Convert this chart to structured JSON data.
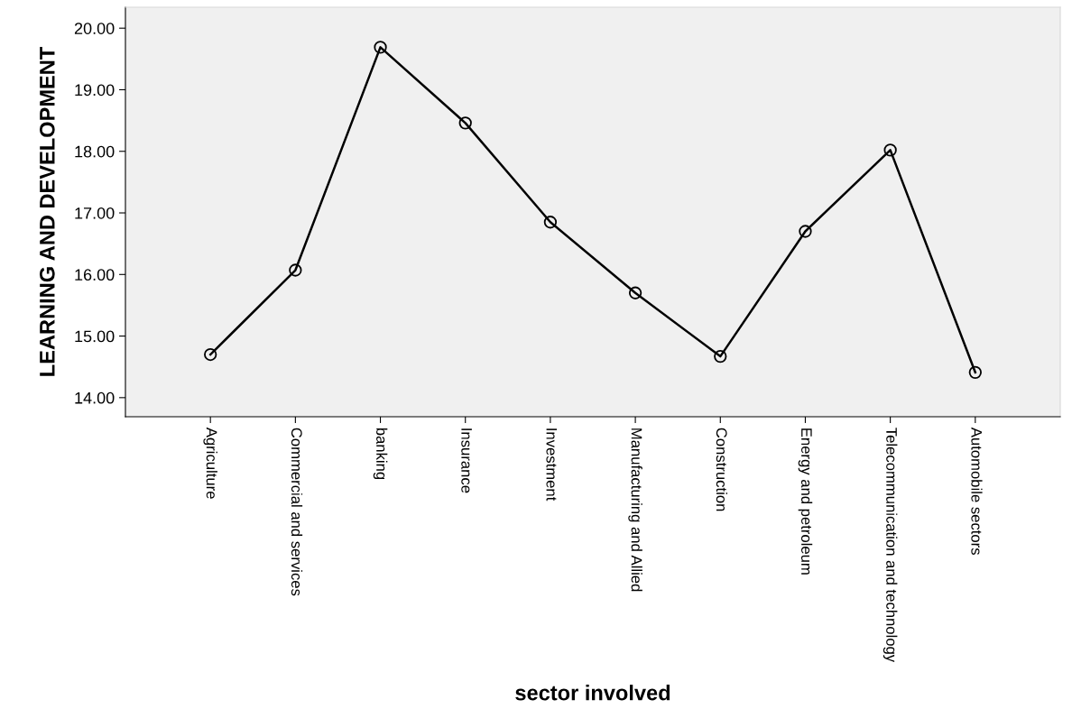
{
  "chart_data": {
    "type": "line",
    "xlabel": "sector involved",
    "ylabel": "LEARNING AND DEVELOPMENT",
    "categories": [
      "Agriculture",
      "Commercial and services",
      "banking",
      "Insurance",
      "Investment",
      "Manufacturing and Allied",
      "Construction",
      "Energy and petroleum",
      "Telecommunication and technology",
      "Automobile sectors"
    ],
    "series": [
      {
        "color": "#000000",
        "values": [
          14.7,
          16.07,
          19.69,
          18.46,
          16.85,
          15.7,
          14.67,
          16.7,
          18.02,
          14.41
        ]
      }
    ],
    "ylim": [
      13.69,
      20.34
    ],
    "yticks": [
      {
        "value": 14,
        "label": "14.00"
      },
      {
        "value": 15,
        "label": "15.00"
      },
      {
        "value": 16,
        "label": "16.00"
      },
      {
        "value": 17,
        "label": "17.00"
      },
      {
        "value": 18,
        "label": "18.00"
      },
      {
        "value": 19,
        "label": "19.00"
      },
      {
        "value": 20,
        "label": "20.00"
      }
    ],
    "grid": false,
    "legend": false,
    "marker": "circle",
    "line_style": "solid"
  }
}
